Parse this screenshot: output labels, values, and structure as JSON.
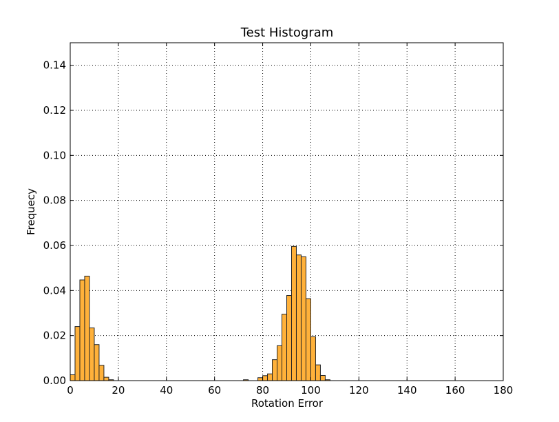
{
  "chart_data": {
    "type": "bar",
    "title": "Test Histogram",
    "xlabel": "Rotation Error",
    "ylabel": "Frequecy",
    "xlim": [
      0,
      180
    ],
    "ylim": [
      0,
      0.15
    ],
    "xticks": [
      0,
      20,
      40,
      60,
      80,
      100,
      120,
      140,
      160,
      180
    ],
    "yticks": [
      0.0,
      0.02,
      0.04,
      0.06,
      0.08,
      0.1,
      0.12,
      0.14
    ],
    "ytick_labels": [
      "0.00",
      "0.02",
      "0.04",
      "0.06",
      "0.08",
      "0.10",
      "0.12",
      "0.14"
    ],
    "grid": true,
    "bar_color": "#ffb13a",
    "edge_color": "#222222",
    "bins": [
      {
        "x0": 0,
        "x1": 2,
        "value": 0.0026
      },
      {
        "x0": 2,
        "x1": 4,
        "value": 0.024
      },
      {
        "x0": 4,
        "x1": 6,
        "value": 0.0447
      },
      {
        "x0": 6,
        "x1": 8,
        "value": 0.0464
      },
      {
        "x0": 8,
        "x1": 10,
        "value": 0.0234
      },
      {
        "x0": 10,
        "x1": 12,
        "value": 0.016
      },
      {
        "x0": 12,
        "x1": 14,
        "value": 0.0068
      },
      {
        "x0": 14,
        "x1": 16,
        "value": 0.0015
      },
      {
        "x0": 16,
        "x1": 18,
        "value": 0.0004
      },
      {
        "x0": 72,
        "x1": 74,
        "value": 0.0004
      },
      {
        "x0": 78,
        "x1": 80,
        "value": 0.0013
      },
      {
        "x0": 80,
        "x1": 82,
        "value": 0.0022
      },
      {
        "x0": 82,
        "x1": 84,
        "value": 0.003
      },
      {
        "x0": 84,
        "x1": 86,
        "value": 0.0093
      },
      {
        "x0": 86,
        "x1": 88,
        "value": 0.0155
      },
      {
        "x0": 88,
        "x1": 90,
        "value": 0.0295
      },
      {
        "x0": 90,
        "x1": 92,
        "value": 0.0378
      },
      {
        "x0": 92,
        "x1": 94,
        "value": 0.0596
      },
      {
        "x0": 94,
        "x1": 96,
        "value": 0.0558
      },
      {
        "x0": 96,
        "x1": 98,
        "value": 0.055
      },
      {
        "x0": 98,
        "x1": 100,
        "value": 0.0364
      },
      {
        "x0": 100,
        "x1": 102,
        "value": 0.0195
      },
      {
        "x0": 102,
        "x1": 104,
        "value": 0.007
      },
      {
        "x0": 104,
        "x1": 106,
        "value": 0.0023
      },
      {
        "x0": 106,
        "x1": 108,
        "value": 0.0004
      }
    ]
  }
}
